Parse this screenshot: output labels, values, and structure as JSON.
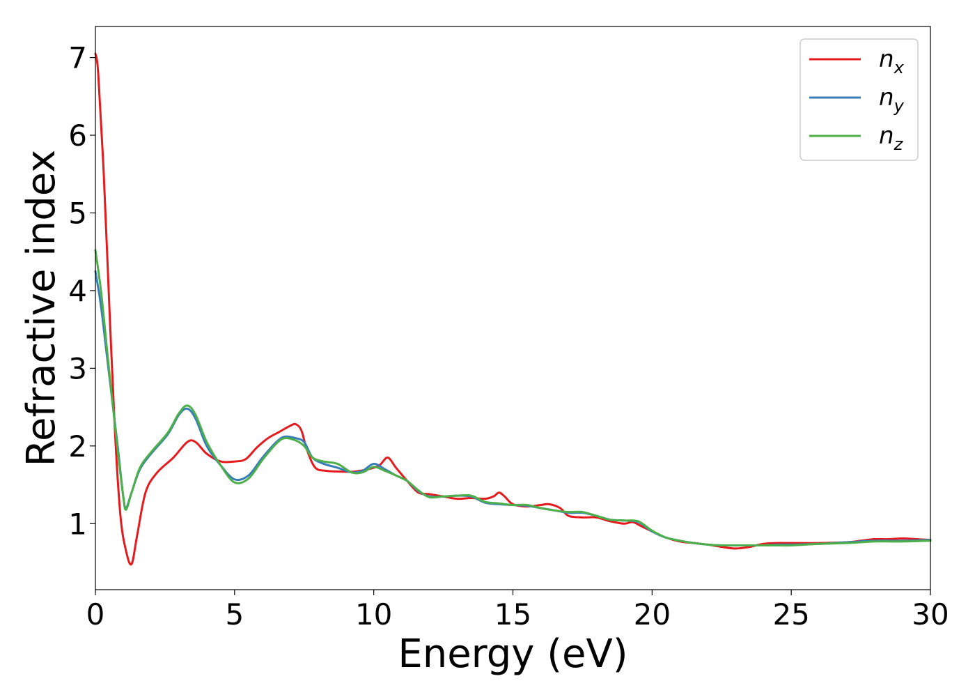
{
  "chart_data": {
    "type": "line",
    "title": "",
    "xlabel": "Energy (eV)",
    "ylabel": "Refractive index",
    "xlim": [
      0,
      30
    ],
    "ylim": [
      0.15,
      7.4
    ],
    "xticks": [
      0,
      5,
      10,
      15,
      20,
      25,
      30
    ],
    "yticks": [
      1,
      2,
      3,
      4,
      5,
      6,
      7
    ],
    "grid": false,
    "legend_position": "top-right",
    "series": [
      {
        "name": "n",
        "subscript": "x",
        "color": "#e41a1c",
        "x": [
          0,
          0.1,
          0.3,
          0.5,
          0.7,
          0.9,
          1.1,
          1.3,
          1.5,
          1.8,
          2.2,
          2.8,
          3.3,
          3.6,
          4.0,
          4.5,
          5.0,
          5.4,
          5.8,
          6.2,
          6.6,
          7.0,
          7.2,
          7.4,
          7.6,
          7.9,
          8.3,
          8.8,
          9.3,
          9.8,
          10.2,
          10.5,
          10.8,
          11.2,
          11.6,
          12.0,
          12.5,
          13.0,
          13.5,
          14.0,
          14.3,
          14.5,
          14.7,
          15.0,
          15.5,
          16.0,
          16.3,
          16.7,
          17.0,
          17.5,
          18.0,
          18.5,
          19.0,
          19.3,
          19.6,
          20.0,
          20.5,
          21.0,
          21.5,
          22.0,
          22.5,
          23.0,
          23.5,
          24.0,
          24.5,
          25.0,
          26.0,
          27.0,
          27.5,
          28.0,
          28.5,
          29.0,
          29.5,
          30.0
        ],
        "values": [
          7.05,
          6.8,
          5.5,
          3.8,
          2.2,
          1.1,
          0.65,
          0.48,
          0.85,
          1.4,
          1.65,
          1.85,
          2.05,
          2.05,
          1.9,
          1.8,
          1.8,
          1.83,
          1.98,
          2.1,
          2.18,
          2.26,
          2.28,
          2.2,
          1.95,
          1.72,
          1.68,
          1.67,
          1.67,
          1.7,
          1.75,
          1.85,
          1.72,
          1.55,
          1.4,
          1.38,
          1.35,
          1.32,
          1.33,
          1.32,
          1.35,
          1.4,
          1.35,
          1.25,
          1.22,
          1.24,
          1.25,
          1.2,
          1.1,
          1.08,
          1.08,
          1.03,
          1.0,
          1.02,
          0.97,
          0.9,
          0.82,
          0.77,
          0.75,
          0.73,
          0.7,
          0.68,
          0.7,
          0.74,
          0.75,
          0.75,
          0.75,
          0.76,
          0.78,
          0.8,
          0.8,
          0.81,
          0.8,
          0.79
        ]
      },
      {
        "name": "n",
        "subscript": "y",
        "color": "#377eb8",
        "x": [
          0,
          0.2,
          0.4,
          0.6,
          0.8,
          1.0,
          1.1,
          1.3,
          1.6,
          2.0,
          2.6,
          3.0,
          3.3,
          3.6,
          4.0,
          4.5,
          5.0,
          5.5,
          6.0,
          6.5,
          6.8,
          7.2,
          7.5,
          7.8,
          8.2,
          8.7,
          9.2,
          9.6,
          10.0,
          10.4,
          10.8,
          11.2,
          11.6,
          12.0,
          12.5,
          13.0,
          13.5,
          14.0,
          14.5,
          15.0,
          15.5,
          16.0,
          16.5,
          17.0,
          17.5,
          18.0,
          18.5,
          19.0,
          19.5,
          20.0,
          20.5,
          21.0,
          21.5,
          22.0,
          22.5,
          23.0,
          23.5,
          24.0,
          24.5,
          25.0,
          26.0,
          27.0,
          28.0,
          29.0,
          30.0
        ],
        "values": [
          4.25,
          3.8,
          3.2,
          2.6,
          2.0,
          1.35,
          1.2,
          1.4,
          1.7,
          1.9,
          2.15,
          2.4,
          2.48,
          2.35,
          2.0,
          1.75,
          1.57,
          1.62,
          1.85,
          2.05,
          2.12,
          2.1,
          2.05,
          1.85,
          1.77,
          1.72,
          1.66,
          1.68,
          1.77,
          1.7,
          1.62,
          1.55,
          1.42,
          1.35,
          1.35,
          1.36,
          1.35,
          1.27,
          1.25,
          1.24,
          1.23,
          1.2,
          1.17,
          1.14,
          1.14,
          1.1,
          1.05,
          1.04,
          1.02,
          0.9,
          0.82,
          0.78,
          0.75,
          0.73,
          0.72,
          0.72,
          0.72,
          0.72,
          0.73,
          0.73,
          0.74,
          0.76,
          0.78,
          0.78,
          0.79
        ]
      },
      {
        "name": "n",
        "subscript": "z",
        "color": "#4daf4a",
        "x": [
          0,
          0.2,
          0.4,
          0.6,
          0.8,
          1.0,
          1.1,
          1.3,
          1.6,
          2.0,
          2.6,
          3.0,
          3.3,
          3.6,
          4.0,
          4.5,
          5.0,
          5.5,
          6.0,
          6.5,
          6.8,
          7.2,
          7.5,
          7.8,
          8.2,
          8.7,
          9.2,
          9.6,
          10.0,
          10.4,
          10.8,
          11.2,
          11.6,
          12.0,
          12.5,
          13.0,
          13.5,
          14.0,
          14.5,
          15.0,
          15.5,
          16.0,
          16.5,
          17.0,
          17.5,
          18.0,
          18.5,
          19.0,
          19.5,
          20.0,
          20.5,
          21.0,
          21.5,
          22.0,
          22.5,
          23.0,
          23.5,
          24.0,
          24.5,
          25.0,
          26.0,
          27.0,
          28.0,
          29.0,
          30.0
        ],
        "values": [
          4.52,
          4.0,
          3.3,
          2.6,
          1.95,
          1.35,
          1.18,
          1.4,
          1.72,
          1.92,
          2.17,
          2.42,
          2.52,
          2.4,
          2.05,
          1.75,
          1.53,
          1.58,
          1.82,
          2.03,
          2.1,
          2.07,
          2.0,
          1.85,
          1.8,
          1.77,
          1.66,
          1.66,
          1.73,
          1.68,
          1.62,
          1.55,
          1.43,
          1.34,
          1.35,
          1.36,
          1.36,
          1.28,
          1.26,
          1.24,
          1.24,
          1.2,
          1.17,
          1.15,
          1.15,
          1.1,
          1.05,
          1.04,
          1.03,
          0.91,
          0.82,
          0.78,
          0.75,
          0.73,
          0.72,
          0.72,
          0.72,
          0.72,
          0.72,
          0.72,
          0.74,
          0.75,
          0.77,
          0.77,
          0.78
        ]
      }
    ]
  }
}
